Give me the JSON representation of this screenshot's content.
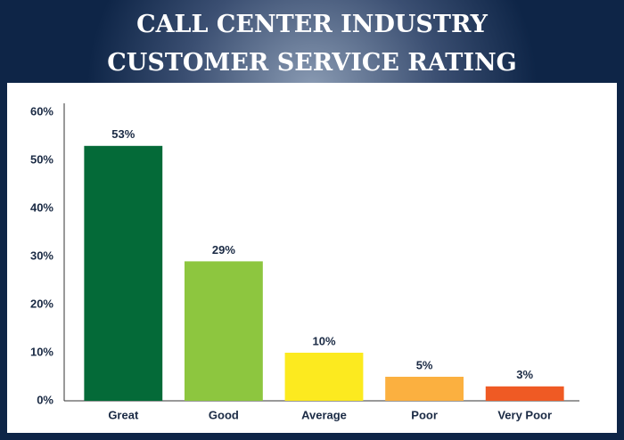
{
  "chart_data": {
    "type": "bar",
    "title": "CALL CENTER INDUSTRY CUSTOMER SERVICE RATING",
    "categories": [
      "Great",
      "Good",
      "Average",
      "Poor",
      "Very Poor"
    ],
    "values": [
      53,
      29,
      10,
      5,
      3
    ],
    "value_labels": [
      "53%",
      "29%",
      "10%",
      "5%",
      "3%"
    ],
    "colors": [
      "#046a38",
      "#8dc63f",
      "#fcea1f",
      "#fbb040",
      "#ef5a24"
    ],
    "ylim": [
      0,
      60
    ],
    "yticks": [
      {
        "value": 0,
        "label": "0%"
      },
      {
        "value": 10,
        "label": "10%"
      },
      {
        "value": 20,
        "label": "20%"
      },
      {
        "value": 30,
        "label": "30%"
      },
      {
        "value": 40,
        "label": "40%"
      },
      {
        "value": 50,
        "label": "50%"
      },
      {
        "value": 60,
        "label": "60%"
      }
    ],
    "grid": false
  }
}
